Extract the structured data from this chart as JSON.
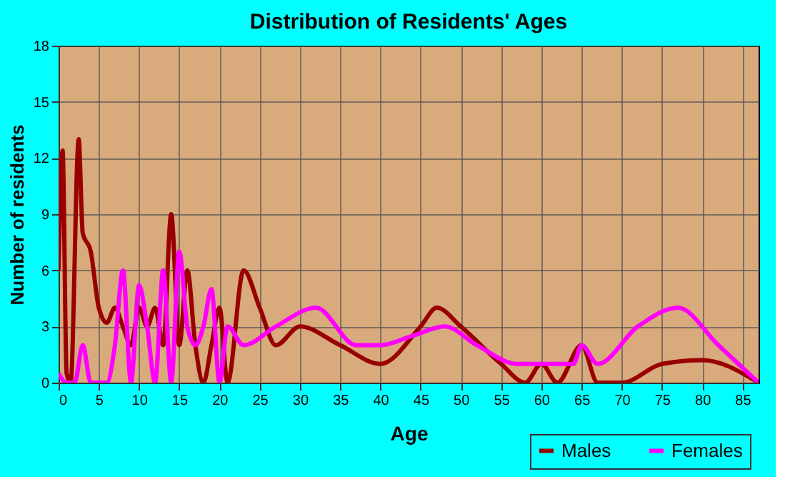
{
  "chart_data": {
    "type": "line",
    "title": "Distribution of Residents' Ages",
    "xlabel": "Age",
    "ylabel": "Number of residents",
    "xlim": [
      0,
      87
    ],
    "xticks": [
      0,
      5,
      10,
      15,
      20,
      25,
      30,
      35,
      40,
      45,
      50,
      55,
      60,
      65,
      70,
      75,
      80,
      85
    ],
    "ylim": [
      0,
      18
    ],
    "yticks": [
      0,
      3,
      6,
      9,
      12,
      15,
      18
    ],
    "grid": true,
    "legend": "bottom right",
    "series": [
      {
        "name": "Males",
        "color": "#990000",
        "x": [
          0,
          0.5,
          1,
          1.5,
          2.5,
          3,
          4,
          5,
          6,
          7,
          8,
          9,
          10,
          11,
          12,
          13,
          14,
          15,
          16,
          17,
          18,
          19,
          20,
          21,
          23,
          25,
          27,
          30,
          35,
          40,
          45,
          47,
          50,
          55,
          58,
          60,
          62,
          65,
          67,
          70,
          75,
          80,
          87
        ],
        "values": [
          6,
          12.4,
          0.5,
          0,
          13,
          8,
          7,
          4,
          3.2,
          4,
          3,
          2,
          4,
          3,
          4,
          2,
          9,
          2,
          6,
          2,
          0,
          2,
          4,
          0,
          6,
          4,
          2,
          3,
          2,
          1,
          3,
          4,
          3,
          1,
          0,
          1,
          0,
          2,
          0,
          0,
          1,
          1.2,
          0
        ]
      },
      {
        "name": "Females",
        "color": "#ff00ff",
        "x": [
          0,
          1,
          2,
          3,
          4,
          6,
          7,
          8,
          9,
          10,
          11,
          12,
          13,
          14,
          15,
          16,
          17,
          18,
          19,
          20,
          21,
          23,
          27,
          32,
          37,
          40,
          44,
          48,
          52,
          57,
          62,
          64,
          65,
          67,
          72,
          77,
          82,
          87
        ],
        "values": [
          0.5,
          0,
          0,
          2,
          0,
          0,
          2,
          6,
          0,
          5.2,
          3,
          0,
          6,
          0,
          7,
          3,
          2,
          3,
          5,
          0,
          3,
          2,
          3,
          4,
          2,
          2,
          2.5,
          3,
          2,
          1,
          1,
          1,
          2,
          1,
          3,
          4,
          2,
          0
        ]
      }
    ]
  }
}
